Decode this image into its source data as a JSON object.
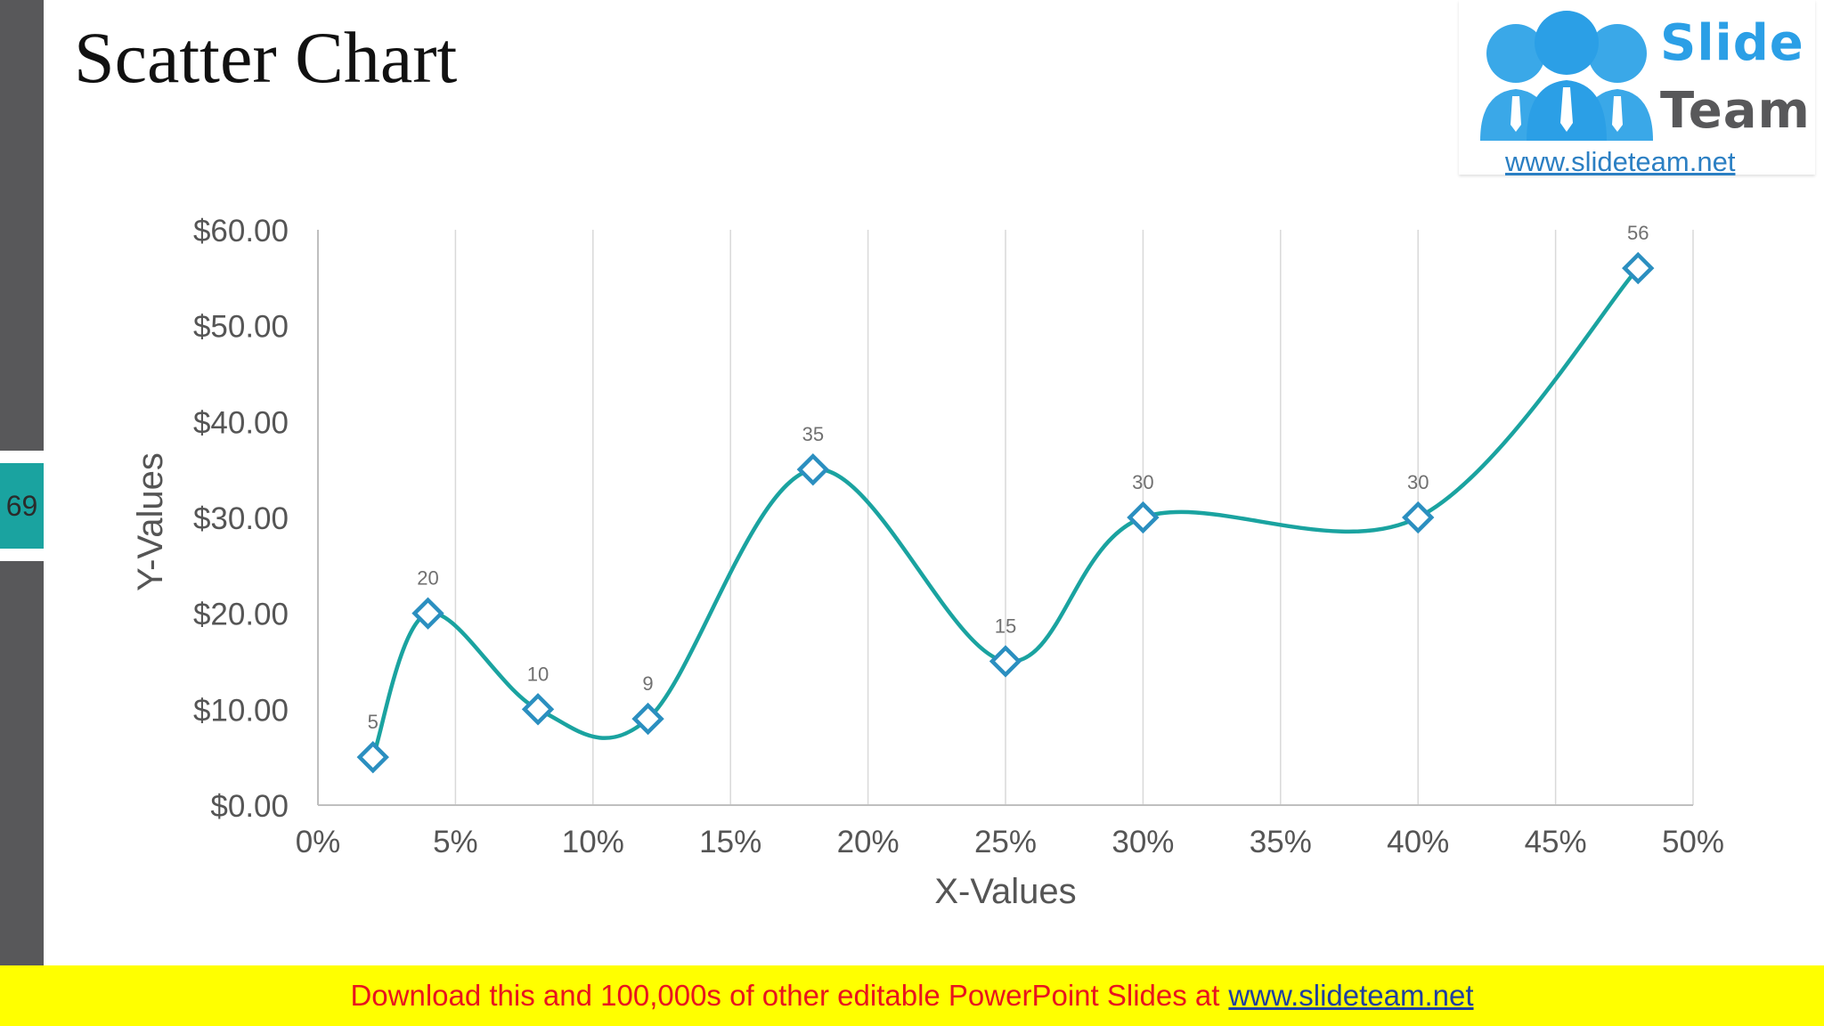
{
  "slide": {
    "title": "Scatter Chart",
    "page_number": "69"
  },
  "logo": {
    "word1": "Slide",
    "word2": "Team",
    "url": "www.slideteam.net"
  },
  "footer": {
    "message": "Download this and 100,000s of other editable PowerPoint Slides at",
    "link": "www.slideteam.net"
  },
  "colors": {
    "line": "#1aa3a0",
    "marker": "#2b8fc0",
    "footer_bg": "#ffff00",
    "sidebar": "#58585a",
    "page_badge": "#1aa3a0"
  },
  "chart_data": {
    "type": "scatter",
    "title": "",
    "xlabel": "X-Values",
    "ylabel": "Y-Values",
    "xlim": [
      0,
      0.5
    ],
    "ylim": [
      0,
      60
    ],
    "x_ticks": [
      "0%",
      "5%",
      "10%",
      "15%",
      "20%",
      "25%",
      "30%",
      "35%",
      "40%",
      "45%",
      "50%"
    ],
    "y_ticks": [
      "$0.00",
      "$10.00",
      "$20.00",
      "$30.00",
      "$40.00",
      "$50.00",
      "$60.00"
    ],
    "vertical_grid": true,
    "smoothed_line": true,
    "marker": "diamond",
    "series": [
      {
        "points": [
          {
            "x": 0.02,
            "y": 5,
            "label": "5"
          },
          {
            "x": 0.04,
            "y": 20,
            "label": "20"
          },
          {
            "x": 0.08,
            "y": 10,
            "label": "10"
          },
          {
            "x": 0.12,
            "y": 9,
            "label": "9"
          },
          {
            "x": 0.18,
            "y": 35,
            "label": "35"
          },
          {
            "x": 0.25,
            "y": 15,
            "label": "15"
          },
          {
            "x": 0.3,
            "y": 30,
            "label": "30"
          },
          {
            "x": 0.4,
            "y": 30,
            "label": "30"
          },
          {
            "x": 0.48,
            "y": 56,
            "label": "56"
          }
        ]
      }
    ]
  }
}
